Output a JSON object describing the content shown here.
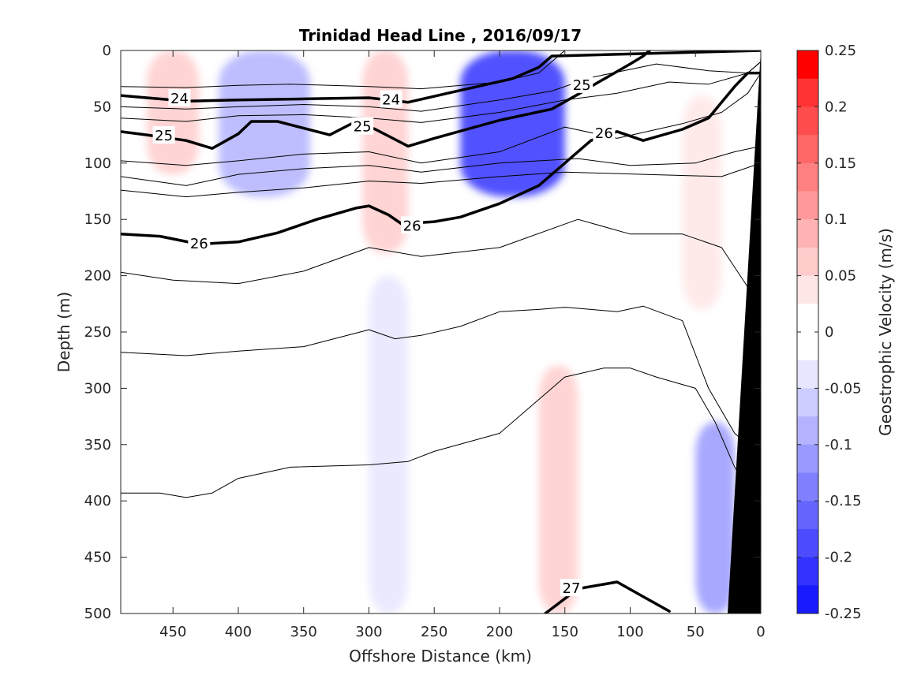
{
  "chart_data": {
    "type": "contour",
    "title": "Trinidad Head Line , 2016/09/17",
    "xlabel": "Offshore Distance (km)",
    "ylabel": "Depth (m)",
    "xlim": [
      490,
      0
    ],
    "ylim": [
      0,
      500
    ],
    "x_ticks": [
      450,
      400,
      350,
      300,
      250,
      200,
      150,
      100,
      50,
      0
    ],
    "y_ticks": [
      0,
      50,
      100,
      150,
      200,
      250,
      300,
      350,
      400,
      450,
      500
    ],
    "colorbar": {
      "label": "Geostrophic Velocity (m/s)",
      "range": [
        -0.25,
        0.25
      ],
      "tick_labels": [
        "0.25",
        "0.2",
        "0.15",
        "0.1",
        "0.05",
        "0",
        "-0.05",
        "-0.1",
        "-0.15",
        "-0.2",
        "-0.25"
      ],
      "levels": [
        -0.25,
        -0.225,
        -0.2,
        -0.175,
        -0.15,
        -0.125,
        -0.1,
        -0.075,
        -0.05,
        -0.025,
        0,
        0.025,
        0.05,
        0.075,
        0.1,
        0.125,
        0.15,
        0.175,
        0.2,
        0.225,
        0.25
      ],
      "colors": [
        "#0000ff",
        "#1a1aff",
        "#3333ff",
        "#4d4dff",
        "#6666ff",
        "#8080ff",
        "#9999ff",
        "#b3b3ff",
        "#ccccff",
        "#e6e6ff",
        "#ffffff",
        "#ffffff",
        "#ffe6e6",
        "#ffcccc",
        "#ffb3b3",
        "#ff9999",
        "#ff8080",
        "#ff6666",
        "#ff4d4d",
        "#ff3333",
        "#ff0000"
      ]
    },
    "velocity_features": [
      {
        "x": [
          470,
          430
        ],
        "depth": [
          0,
          110
        ],
        "velocity": 0.075
      },
      {
        "x": [
          415,
          345
        ],
        "depth": [
          0,
          130
        ],
        "velocity": -0.075
      },
      {
        "x": [
          305,
          270
        ],
        "depth": [
          0,
          180
        ],
        "velocity": 0.075
      },
      {
        "x": [
          230,
          150
        ],
        "depth": [
          0,
          130
        ],
        "velocity": -0.2
      },
      {
        "x": [
          60,
          30
        ],
        "depth": [
          40,
          230
        ],
        "velocity": 0.05
      },
      {
        "x": [
          300,
          270
        ],
        "depth": [
          200,
          500
        ],
        "velocity": -0.025
      },
      {
        "x": [
          170,
          140
        ],
        "depth": [
          280,
          500
        ],
        "velocity": 0.075
      },
      {
        "x": [
          50,
          20
        ],
        "depth": [
          330,
          500
        ],
        "velocity": -0.1
      }
    ],
    "isopycnal_labels": [
      {
        "value": "24",
        "x": 445,
        "depth": 42
      },
      {
        "value": "24",
        "x": 283,
        "depth": 43
      },
      {
        "value": "25",
        "x": 137,
        "depth": 30
      },
      {
        "value": "25",
        "x": 457,
        "depth": 75
      },
      {
        "value": "25",
        "x": 305,
        "depth": 67
      },
      {
        "value": "26",
        "x": 120,
        "depth": 73
      },
      {
        "value": "26",
        "x": 267,
        "depth": 155
      },
      {
        "value": "26",
        "x": 430,
        "depth": 171
      },
      {
        "value": "27",
        "x": 145,
        "depth": 477
      }
    ],
    "bold_isopycnals": [
      {
        "sigma": 24,
        "x": [
          490,
          470,
          440,
          400,
          350,
          300,
          270,
          240,
          190,
          170,
          165,
          160,
          0
        ],
        "depth": [
          40,
          42,
          45,
          44,
          43,
          42,
          46,
          38,
          25,
          15,
          10,
          5,
          0
        ]
      },
      {
        "sigma": 25,
        "x": [
          490,
          470,
          440,
          420,
          400,
          390,
          370,
          330,
          310,
          295,
          270,
          250,
          200,
          160,
          140,
          130,
          100,
          90,
          85
        ],
        "depth": [
          72,
          75,
          80,
          87,
          74,
          63,
          63,
          75,
          63,
          70,
          85,
          78,
          62,
          52,
          39,
          32,
          12,
          5,
          0
        ]
      },
      {
        "sigma": 26,
        "x": [
          490,
          460,
          430,
          400,
          370,
          340,
          310,
          300,
          285,
          275,
          250,
          230,
          200,
          170,
          150,
          130,
          110,
          90,
          60,
          40,
          20,
          10,
          0
        ],
        "depth": [
          163,
          165,
          172,
          170,
          162,
          150,
          140,
          138,
          146,
          154,
          152,
          148,
          136,
          120,
          100,
          80,
          72,
          80,
          70,
          60,
          32,
          20,
          20
        ]
      },
      {
        "sigma": 27,
        "x": [
          165,
          140,
          110,
          90,
          70
        ],
        "depth": [
          500,
          478,
          472,
          485,
          498
        ]
      }
    ],
    "thin_isopycnals": [
      {
        "x": [
          490,
          440,
          400,
          360,
          300,
          260,
          200,
          170,
          150,
          100,
          50,
          20,
          0
        ],
        "depth": [
          32,
          33,
          31,
          30,
          32,
          34,
          28,
          20,
          0,
          0,
          0,
          0,
          0
        ]
      },
      {
        "x": [
          490,
          440,
          400,
          350,
          300,
          260,
          200,
          160,
          130,
          80,
          40,
          10,
          0
        ],
        "depth": [
          50,
          52,
          50,
          48,
          50,
          54,
          44,
          36,
          24,
          12,
          18,
          20,
          10
        ]
      },
      {
        "x": [
          490,
          440,
          400,
          350,
          300,
          260,
          200,
          150,
          110,
          70,
          40,
          10,
          0
        ],
        "depth": [
          60,
          63,
          58,
          57,
          60,
          64,
          55,
          44,
          38,
          28,
          30,
          20,
          10
        ]
      },
      {
        "x": [
          490,
          440,
          400,
          350,
          300,
          260,
          200,
          150,
          110,
          60,
          30,
          10,
          0
        ],
        "depth": [
          98,
          102,
          98,
          92,
          90,
          100,
          90,
          68,
          78,
          65,
          55,
          38,
          20
        ]
      },
      {
        "x": [
          490,
          440,
          400,
          350,
          300,
          260,
          200,
          140,
          100,
          50,
          20,
          0
        ],
        "depth": [
          112,
          120,
          110,
          105,
          102,
          108,
          100,
          96,
          102,
          100,
          90,
          85
        ]
      },
      {
        "x": [
          490,
          440,
          400,
          350,
          300,
          260,
          200,
          150,
          90,
          30,
          0
        ],
        "depth": [
          124,
          130,
          126,
          122,
          116,
          118,
          112,
          108,
          110,
          112,
          100
        ]
      },
      {
        "x": [
          490,
          450,
          400,
          350,
          300,
          260,
          200,
          140,
          100,
          60,
          30,
          10,
          0
        ],
        "depth": [
          197,
          204,
          207,
          196,
          175,
          183,
          175,
          150,
          163,
          163,
          175,
          210,
          230
        ]
      },
      {
        "x": [
          490,
          440,
          400,
          350,
          300,
          280,
          260,
          230,
          200,
          170,
          150,
          130,
          110,
          90,
          60,
          40,
          20,
          0
        ],
        "depth": [
          268,
          271,
          267,
          263,
          248,
          256,
          253,
          245,
          232,
          230,
          228,
          230,
          232,
          227,
          240,
          300,
          340,
          360
        ]
      },
      {
        "x": [
          490,
          460,
          440,
          420,
          400,
          360,
          300,
          270,
          250,
          200,
          170,
          150,
          120,
          100,
          80,
          50,
          35,
          20,
          10
        ],
        "depth": [
          393,
          393,
          397,
          393,
          380,
          370,
          368,
          365,
          356,
          340,
          310,
          290,
          282,
          282,
          290,
          300,
          330,
          370,
          390
        ]
      }
    ]
  }
}
